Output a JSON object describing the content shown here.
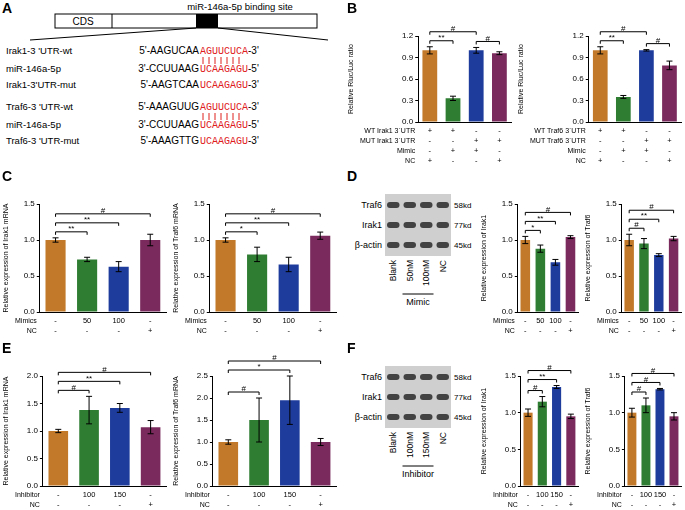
{
  "diagram": {
    "panel": "A",
    "region": "CDS",
    "site_label": "miR-146a-5p binding site",
    "groups": [
      {
        "lines": [
          {
            "name": "Irak1-3 'UTR-wt",
            "before": "5'-AAGUCAA",
            "site": "AGUUCUCA",
            "after": "-3'"
          },
          {
            "name": "miR-146a-5p",
            "before": "3'-CCUUAAG",
            "site": "UCAAGAGU",
            "after": "-5'"
          },
          {
            "name": "Irak1-3'UTR-mut",
            "before": "5'-AAGTCAA",
            "site": "UCAAGAGU",
            "after": "-3'"
          }
        ]
      },
      {
        "lines": [
          {
            "name": "Traf6-3 'UTR-wt",
            "before": "5'-AAAGUUG",
            "site": "AGUUCUCA",
            "after": "-3'"
          },
          {
            "name": "miR-146a-5p",
            "before": "3'-CCUUAAG",
            "site": "UCAAGAGU",
            "after": "-5'"
          },
          {
            "name": "Traf6-3 'UTR-mut",
            "before": "5'-AAAGTTG",
            "site": "UCAAGAGU",
            "after": "-3'"
          }
        ]
      }
    ]
  },
  "blots": [
    {
      "panel": "D",
      "rows": [
        {
          "label": "Traf6",
          "size": "58kd"
        },
        {
          "label": "Irak1",
          "size": "77kd"
        },
        {
          "label": "β-actin",
          "size": "45kd"
        }
      ],
      "lanes": [
        "Blank",
        "50nM",
        "100nM",
        "NC"
      ],
      "group": {
        "label": "Mimic",
        "from": 1,
        "to": 2
      }
    },
    {
      "panel": "F",
      "rows": [
        {
          "label": "Traf6",
          "size": "58kd"
        },
        {
          "label": "Irak1",
          "size": "77kd"
        },
        {
          "label": "β-actin",
          "size": "45kd"
        }
      ],
      "lanes": [
        "Blank",
        "100nM",
        "150nM",
        "NC"
      ],
      "group": {
        "label": "Inhibitor",
        "from": 1,
        "to": 2
      }
    }
  ],
  "chart_data": [
    {
      "type": "bar",
      "panel": "B",
      "y_label": "Relative Rluc/Luc ratio",
      "categories": [
        null,
        null,
        null,
        null
      ],
      "values": [
        1.0,
        0.33,
        1.0,
        0.96
      ],
      "errors": [
        0.05,
        0.03,
        0.04,
        0.02
      ],
      "colors": [
        "#c27a2a",
        "#2e7d32",
        "#1e3c9c",
        "#7a2a5c"
      ],
      "ylim": [
        0,
        1.2
      ],
      "yticks": [
        {
          "value": 0,
          "label": "0.0"
        },
        0.3,
        0.6,
        0.9,
        1.2
      ],
      "grid": false,
      "tick_labels": "y",
      "conditions": [
        {
          "label": "WT Irak1 3`UTR",
          "values": [
            "+",
            "+",
            "-",
            "-"
          ]
        },
        {
          "label": "MUT Irak1 3`UTR",
          "values": [
            "-",
            "-",
            "+",
            "+"
          ]
        },
        {
          "label": "Mimic",
          "values": [
            "-",
            "+",
            "+",
            "-"
          ]
        },
        {
          "label": "NC",
          "values": [
            "+",
            "-",
            "-",
            "+"
          ]
        }
      ],
      "significance": [
        {
          "from": 0,
          "to": 1,
          "label": "**"
        },
        {
          "from": 2,
          "to": 3,
          "label": "#"
        },
        {
          "from": 0,
          "to": 2,
          "label": "#"
        }
      ]
    },
    {
      "type": "bar",
      "y_label": "Relative Rluc/Luc ratio",
      "categories": [
        null,
        null,
        null,
        null
      ],
      "values": [
        1.0,
        0.35,
        1.0,
        0.79
      ],
      "errors": [
        0.05,
        0.02,
        0.01,
        0.06
      ],
      "colors": [
        "#c27a2a",
        "#2e7d32",
        "#1e3c9c",
        "#7a2a5c"
      ],
      "ylim": [
        0,
        1.2
      ],
      "yticks": [
        {
          "value": 0,
          "label": "0.0"
        },
        0.3,
        0.6,
        0.9,
        1.2
      ],
      "grid": false,
      "tick_labels": "y",
      "conditions": [
        {
          "label": "WT Traf6 3`UTR",
          "values": [
            "+",
            "+",
            "-",
            "-"
          ]
        },
        {
          "label": "MUT Traf6 3`UTR",
          "values": [
            "-",
            "-",
            "+",
            "+"
          ]
        },
        {
          "label": "Mimic",
          "values": [
            "-",
            "+",
            "+",
            "-"
          ]
        },
        {
          "label": "NC",
          "values": [
            "+",
            "-",
            "-",
            "+"
          ]
        }
      ],
      "significance": [
        {
          "from": 0,
          "to": 1,
          "label": "**"
        },
        {
          "from": 2,
          "to": 3,
          "label": "#"
        },
        {
          "from": 0,
          "to": 2,
          "label": "#"
        }
      ]
    },
    {
      "type": "bar",
      "panel": "C",
      "y_label": "Relative expression of Irak1 mRNA",
      "categories": [
        null,
        null,
        null,
        null
      ],
      "values": [
        1.0,
        0.73,
        0.63,
        1.0
      ],
      "errors": [
        0.03,
        0.03,
        0.07,
        0.08
      ],
      "colors": [
        "#c27a2a",
        "#2e7d32",
        "#1e3c9c",
        "#7a2a5c"
      ],
      "ylim": [
        0,
        1.5
      ],
      "yticks": [
        {
          "value": 0,
          "label": "0.0"
        },
        0.5,
        {
          "value": 1,
          "label": "1.0"
        },
        1.5
      ],
      "grid": false,
      "tick_labels": "y",
      "conditions": [
        {
          "label": "Mimics",
          "values": [
            "-",
            "50",
            "100",
            "-"
          ]
        },
        {
          "label": "NC",
          "values": [
            "-",
            "-",
            "-",
            "+"
          ]
        }
      ],
      "significance": [
        {
          "from": 0,
          "to": 1,
          "label": "**"
        },
        {
          "from": 0,
          "to": 2,
          "label": "**"
        },
        {
          "from": 0,
          "to": 3,
          "label": "#"
        }
      ]
    },
    {
      "type": "bar",
      "y_label": "Relative expression of Traf6 mRNA",
      "categories": [
        null,
        null,
        null,
        null
      ],
      "values": [
        1.0,
        0.8,
        0.66,
        1.06
      ],
      "errors": [
        0.03,
        0.1,
        0.1,
        0.05
      ],
      "colors": [
        "#c27a2a",
        "#2e7d32",
        "#1e3c9c",
        "#7a2a5c"
      ],
      "ylim": [
        0,
        1.5
      ],
      "yticks": [
        {
          "value": 0,
          "label": "0.0"
        },
        0.5,
        {
          "value": 1,
          "label": "1.0"
        },
        1.5
      ],
      "grid": false,
      "tick_labels": "y",
      "conditions": [
        {
          "label": "Mimics",
          "values": [
            "-",
            "50",
            "100",
            "-"
          ]
        },
        {
          "label": "NC",
          "values": [
            "-",
            "-",
            "-",
            "+"
          ]
        }
      ],
      "significance": [
        {
          "from": 0,
          "to": 1,
          "label": "*"
        },
        {
          "from": 0,
          "to": 2,
          "label": "**"
        },
        {
          "from": 0,
          "to": 3,
          "label": "#"
        }
      ]
    },
    {
      "type": "bar",
      "y_label": "Relative expression of Irak1",
      "categories": [
        null,
        null,
        null,
        null
      ],
      "values": [
        1.0,
        0.88,
        0.69,
        1.04
      ],
      "errors": [
        0.05,
        0.05,
        0.04,
        0.02
      ],
      "colors": [
        "#c27a2a",
        "#2e7d32",
        "#1e3c9c",
        "#7a2a5c"
      ],
      "ylim": [
        0,
        1.5
      ],
      "yticks": [
        {
          "value": 0,
          "label": "0.0"
        },
        0.5,
        {
          "value": 1,
          "label": "1.0"
        },
        1.5
      ],
      "grid": false,
      "tick_labels": "y",
      "conditions": [
        {
          "label": "Mimics",
          "values": [
            "-",
            "50",
            "100",
            "-"
          ]
        },
        {
          "label": "NC",
          "values": [
            "-",
            "-",
            "-",
            "+"
          ]
        }
      ],
      "significance": [
        {
          "from": 0,
          "to": 1,
          "label": "*"
        },
        {
          "from": 0,
          "to": 2,
          "label": "**"
        },
        {
          "from": 0,
          "to": 3,
          "label": "#"
        }
      ]
    },
    {
      "type": "bar",
      "y_label": "Relative expression of Traf6",
      "categories": [
        null,
        null,
        null,
        null
      ],
      "values": [
        1.0,
        0.95,
        0.79,
        1.02
      ],
      "errors": [
        0.08,
        0.07,
        0.02,
        0.03
      ],
      "colors": [
        "#c27a2a",
        "#2e7d32",
        "#1e3c9c",
        "#7a2a5c"
      ],
      "ylim": [
        0,
        1.5
      ],
      "yticks": [
        {
          "value": 0,
          "label": "0.0"
        },
        0.5,
        {
          "value": 1,
          "label": "1.0"
        },
        1.5
      ],
      "grid": false,
      "tick_labels": "y",
      "conditions": [
        {
          "label": "Mimics",
          "values": [
            "-",
            "50",
            "100",
            "-"
          ]
        },
        {
          "label": "NC",
          "values": [
            "-",
            "-",
            "-",
            "+"
          ]
        }
      ],
      "significance": [
        {
          "from": 0,
          "to": 1,
          "label": "#"
        },
        {
          "from": 0,
          "to": 2,
          "label": "**"
        },
        {
          "from": 0,
          "to": 3,
          "label": "#"
        }
      ]
    },
    {
      "type": "bar",
      "panel": "E",
      "y_label": "Relative expression of Irak1 mRNA",
      "categories": [
        null,
        null,
        null,
        null
      ],
      "values": [
        1.0,
        1.38,
        1.42,
        1.07
      ],
      "errors": [
        0.03,
        0.25,
        0.08,
        0.12
      ],
      "colors": [
        "#c27a2a",
        "#2e7d32",
        "#1e3c9c",
        "#7a2a5c"
      ],
      "ylim": [
        0,
        2
      ],
      "yticks": [
        {
          "value": 0,
          "label": "0.0"
        },
        0.5,
        {
          "value": 1,
          "label": "1.0"
        },
        1.5,
        {
          "value": 2,
          "label": "2.0"
        }
      ],
      "grid": false,
      "tick_labels": "y",
      "conditions": [
        {
          "label": "Inhibitor",
          "values": [
            "-",
            "100",
            "150",
            "-"
          ]
        },
        {
          "label": "NC",
          "values": [
            "-",
            "-",
            "-",
            "+"
          ]
        }
      ],
      "significance": [
        {
          "from": 0,
          "to": 1,
          "label": "#"
        },
        {
          "from": 0,
          "to": 2,
          "label": "**"
        },
        {
          "from": 0,
          "to": 3,
          "label": "#"
        }
      ]
    },
    {
      "type": "bar",
      "y_label": "Relative expression of Traf6 mRNA",
      "categories": [
        null,
        null,
        null,
        null
      ],
      "values": [
        1.0,
        1.5,
        1.95,
        1.0
      ],
      "errors": [
        0.05,
        0.5,
        0.55,
        0.08
      ],
      "colors": [
        "#c27a2a",
        "#2e7d32",
        "#1e3c9c",
        "#7a2a5c"
      ],
      "ylim": [
        0,
        2.5
      ],
      "yticks": [
        {
          "value": 0,
          "label": "0.0"
        },
        0.5,
        {
          "value": 1,
          "label": "1.0"
        },
        1.5,
        {
          "value": 2,
          "label": "2.0"
        },
        2.5
      ],
      "grid": false,
      "tick_labels": "y",
      "conditions": [
        {
          "label": "Inhibitor",
          "values": [
            "-",
            "100",
            "150",
            "-"
          ]
        },
        {
          "label": "NC",
          "values": [
            "-",
            "-",
            "-",
            "+"
          ]
        }
      ],
      "significance": [
        {
          "from": 0,
          "to": 1,
          "label": "#"
        },
        {
          "from": 0,
          "to": 2,
          "label": "*"
        },
        {
          "from": 0,
          "to": 3,
          "label": "#"
        }
      ]
    },
    {
      "type": "bar",
      "y_label": "Relative expression of Irak1",
      "categories": [
        null,
        null,
        null,
        null
      ],
      "values": [
        1.0,
        1.15,
        1.35,
        0.95
      ],
      "errors": [
        0.05,
        0.07,
        0.02,
        0.03
      ],
      "colors": [
        "#c27a2a",
        "#2e7d32",
        "#1e3c9c",
        "#7a2a5c"
      ],
      "ylim": [
        0,
        1.5
      ],
      "yticks": [
        {
          "value": 0,
          "label": "0.0"
        },
        0.5,
        {
          "value": 1,
          "label": "1.0"
        },
        1.5
      ],
      "grid": false,
      "tick_labels": "y",
      "conditions": [
        {
          "label": "Inhibitor",
          "values": [
            "-",
            "100",
            "150",
            "-"
          ]
        },
        {
          "label": "NC",
          "values": [
            "-",
            "-",
            "-",
            "+"
          ]
        }
      ],
      "significance": [
        {
          "from": 0,
          "to": 1,
          "label": "#"
        },
        {
          "from": 0,
          "to": 2,
          "label": "**"
        },
        {
          "from": 0,
          "to": 3,
          "label": "#"
        }
      ]
    },
    {
      "type": "bar",
      "y_label": "Relative expression of Traf6",
      "categories": [
        null,
        null,
        null,
        null
      ],
      "values": [
        1.0,
        1.1,
        1.32,
        0.95
      ],
      "errors": [
        0.06,
        0.1,
        0.01,
        0.05
      ],
      "colors": [
        "#c27a2a",
        "#2e7d32",
        "#1e3c9c",
        "#7a2a5c"
      ],
      "ylim": [
        0,
        1.5
      ],
      "yticks": [
        {
          "value": 0,
          "label": "0.0"
        },
        0.5,
        {
          "value": 1,
          "label": "1.0"
        },
        1.5
      ],
      "grid": false,
      "tick_labels": "y",
      "conditions": [
        {
          "label": "Inhibitor",
          "values": [
            "-",
            "100",
            "150",
            "-"
          ]
        },
        {
          "label": "NC",
          "values": [
            "-",
            "-",
            "-",
            "+"
          ]
        }
      ],
      "significance": [
        {
          "from": 0,
          "to": 1,
          "label": "#"
        },
        {
          "from": 0,
          "to": 2,
          "label": "#"
        },
        {
          "from": 0,
          "to": 3,
          "label": "#"
        }
      ]
    }
  ]
}
